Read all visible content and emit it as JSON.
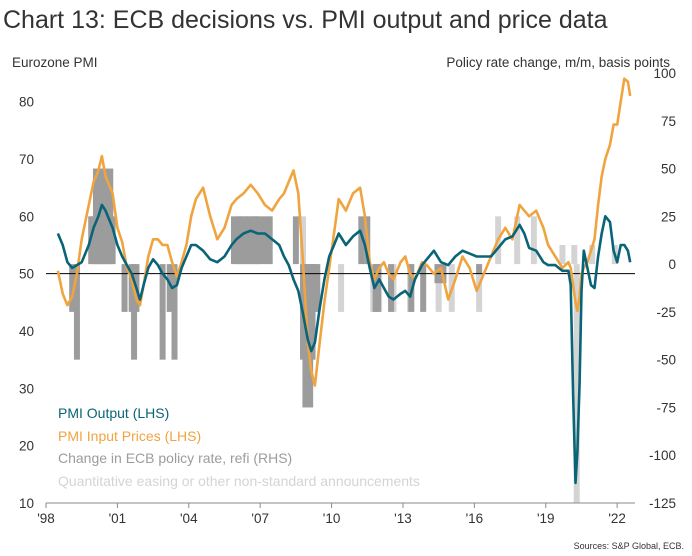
{
  "chart_data": {
    "type": "line",
    "title": "Chart 13: ECB decisions vs. PMI output and price data",
    "left_axis": {
      "label": "Eurozone PMI",
      "range": [
        10,
        85
      ],
      "ticks": [
        10,
        20,
        30,
        40,
        50,
        60,
        70,
        80
      ]
    },
    "right_axis": {
      "label": "Policy rate change, m/m, basis points",
      "range": [
        -125,
        100
      ],
      "ticks": [
        -125,
        -100,
        -75,
        -50,
        -25,
        0,
        25,
        50,
        75,
        100
      ]
    },
    "x_axis": {
      "range": [
        1998,
        2022.75
      ],
      "tick_labels": [
        "'98",
        "'01",
        "'04",
        "'07",
        "'10",
        "'13",
        "'16",
        "'19",
        "'22"
      ],
      "tick_values": [
        1998,
        2001,
        2004,
        2007,
        2010,
        2013,
        2016,
        2019,
        2022
      ]
    },
    "reference_line": {
      "axis": "left",
      "value": 50
    },
    "legend": {
      "placement": "bottom-left",
      "entries": [
        {
          "label": "PMI  Output (LHS)",
          "color": "#0a6478"
        },
        {
          "label": "PMI Input Prices (LHS)",
          "color": "#f0a440"
        },
        {
          "label": "Change in ECB policy rate, refi (RHS)",
          "color": "#9c9c9c"
        },
        {
          "label": "Quantitative easing or other non-standard announcements",
          "color": "#d4d4d4"
        }
      ]
    },
    "series": [
      {
        "name": "PMI  Output (LHS)",
        "axis": "left",
        "color": "#0a6478",
        "points": [
          [
            1998.5,
            57
          ],
          [
            1998.7,
            55
          ],
          [
            1998.9,
            52
          ],
          [
            1999.1,
            51
          ],
          [
            1999.3,
            51.5
          ],
          [
            1999.5,
            52
          ],
          [
            1999.8,
            55
          ],
          [
            2000.0,
            58
          ],
          [
            2000.2,
            60
          ],
          [
            2000.35,
            62
          ],
          [
            2000.5,
            61
          ],
          [
            2000.8,
            58
          ],
          [
            2001.0,
            55
          ],
          [
            2001.2,
            53
          ],
          [
            2001.4,
            51.5
          ],
          [
            2001.6,
            50
          ],
          [
            2001.8,
            47.5
          ],
          [
            2001.95,
            45.5
          ],
          [
            2002.1,
            48
          ],
          [
            2002.3,
            51
          ],
          [
            2002.5,
            52.5
          ],
          [
            2002.7,
            51.5
          ],
          [
            2002.9,
            50
          ],
          [
            2003.1,
            49
          ],
          [
            2003.3,
            47.5
          ],
          [
            2003.5,
            48
          ],
          [
            2003.7,
            51
          ],
          [
            2003.9,
            53
          ],
          [
            2004.1,
            55
          ],
          [
            2004.3,
            55
          ],
          [
            2004.6,
            54
          ],
          [
            2004.9,
            52.5
          ],
          [
            2005.2,
            52
          ],
          [
            2005.5,
            53
          ],
          [
            2005.8,
            55
          ],
          [
            2006.0,
            56
          ],
          [
            2006.3,
            57
          ],
          [
            2006.6,
            57.5
          ],
          [
            2006.9,
            57
          ],
          [
            2007.2,
            57
          ],
          [
            2007.5,
            56
          ],
          [
            2007.8,
            55
          ],
          [
            2008.0,
            53
          ],
          [
            2008.2,
            51.5
          ],
          [
            2008.4,
            49
          ],
          [
            2008.6,
            47
          ],
          [
            2008.8,
            43
          ],
          [
            2009.0,
            38.5
          ],
          [
            2009.15,
            36.5
          ],
          [
            2009.3,
            38
          ],
          [
            2009.5,
            44
          ],
          [
            2009.7,
            49
          ],
          [
            2009.9,
            53
          ],
          [
            2010.1,
            55
          ],
          [
            2010.3,
            57
          ],
          [
            2010.6,
            55
          ],
          [
            2010.9,
            56.5
          ],
          [
            2011.2,
            57.5
          ],
          [
            2011.4,
            55
          ],
          [
            2011.6,
            51
          ],
          [
            2011.8,
            47.5
          ],
          [
            2012.0,
            49
          ],
          [
            2012.2,
            47.5
          ],
          [
            2012.4,
            46
          ],
          [
            2012.6,
            45.5
          ],
          [
            2012.9,
            46.5
          ],
          [
            2013.1,
            47
          ],
          [
            2013.3,
            46
          ],
          [
            2013.5,
            49
          ],
          [
            2013.8,
            51.5
          ],
          [
            2014.0,
            52.5
          ],
          [
            2014.3,
            54
          ],
          [
            2014.6,
            52
          ],
          [
            2014.9,
            51.5
          ],
          [
            2015.2,
            53
          ],
          [
            2015.5,
            54
          ],
          [
            2015.8,
            53.5
          ],
          [
            2016.1,
            53
          ],
          [
            2016.4,
            53
          ],
          [
            2016.7,
            53
          ],
          [
            2017.0,
            54.5
          ],
          [
            2017.3,
            56
          ],
          [
            2017.6,
            56.5
          ],
          [
            2017.9,
            58.5
          ],
          [
            2018.1,
            57
          ],
          [
            2018.3,
            54.5
          ],
          [
            2018.6,
            54
          ],
          [
            2018.9,
            52
          ],
          [
            2019.1,
            51.5
          ],
          [
            2019.4,
            51.5
          ],
          [
            2019.7,
            50.5
          ],
          [
            2019.95,
            50.5
          ],
          [
            2020.05,
            48
          ],
          [
            2020.15,
            29
          ],
          [
            2020.25,
            13.5
          ],
          [
            2020.33,
            19
          ],
          [
            2020.42,
            31
          ],
          [
            2020.5,
            47
          ],
          [
            2020.6,
            54
          ],
          [
            2020.75,
            51
          ],
          [
            2020.9,
            48
          ],
          [
            2021.05,
            47.5
          ],
          [
            2021.2,
            53
          ],
          [
            2021.35,
            57
          ],
          [
            2021.5,
            60
          ],
          [
            2021.7,
            59
          ],
          [
            2021.85,
            54
          ],
          [
            2022.0,
            52
          ],
          [
            2022.15,
            55
          ],
          [
            2022.3,
            55
          ],
          [
            2022.45,
            54
          ],
          [
            2022.55,
            52
          ]
        ]
      },
      {
        "name": "PMI Input Prices (LHS)",
        "axis": "left",
        "color": "#f0a440",
        "points": [
          [
            1998.5,
            50.5
          ],
          [
            1998.7,
            46.5
          ],
          [
            1998.9,
            44.5
          ],
          [
            1999.1,
            46
          ],
          [
            1999.3,
            50
          ],
          [
            1999.5,
            56
          ],
          [
            1999.8,
            62
          ],
          [
            2000.0,
            66
          ],
          [
            2000.2,
            68
          ],
          [
            2000.35,
            70.5
          ],
          [
            2000.5,
            67
          ],
          [
            2000.8,
            64
          ],
          [
            2001.0,
            58
          ],
          [
            2001.2,
            55.5
          ],
          [
            2001.4,
            51
          ],
          [
            2001.6,
            49
          ],
          [
            2001.8,
            45.5
          ],
          [
            2001.95,
            44.5
          ],
          [
            2002.1,
            48
          ],
          [
            2002.3,
            53
          ],
          [
            2002.5,
            56
          ],
          [
            2002.7,
            56
          ],
          [
            2002.9,
            55
          ],
          [
            2003.1,
            55
          ],
          [
            2003.3,
            52
          ],
          [
            2003.5,
            49.5
          ],
          [
            2003.7,
            52
          ],
          [
            2003.9,
            55
          ],
          [
            2004.1,
            60
          ],
          [
            2004.3,
            63
          ],
          [
            2004.6,
            65
          ],
          [
            2004.9,
            60
          ],
          [
            2005.2,
            56
          ],
          [
            2005.5,
            58
          ],
          [
            2005.8,
            62
          ],
          [
            2006.0,
            63
          ],
          [
            2006.3,
            64
          ],
          [
            2006.6,
            65.5
          ],
          [
            2006.9,
            64
          ],
          [
            2007.2,
            62
          ],
          [
            2007.5,
            61
          ],
          [
            2007.8,
            63
          ],
          [
            2008.0,
            64
          ],
          [
            2008.2,
            66
          ],
          [
            2008.4,
            68
          ],
          [
            2008.6,
            64
          ],
          [
            2008.8,
            52
          ],
          [
            2009.0,
            38
          ],
          [
            2009.15,
            33
          ],
          [
            2009.3,
            30.5
          ],
          [
            2009.5,
            38
          ],
          [
            2009.7,
            45
          ],
          [
            2009.9,
            51
          ],
          [
            2010.1,
            57
          ],
          [
            2010.3,
            63
          ],
          [
            2010.6,
            61
          ],
          [
            2010.9,
            64
          ],
          [
            2011.2,
            65
          ],
          [
            2011.4,
            60
          ],
          [
            2011.6,
            52
          ],
          [
            2011.8,
            49
          ],
          [
            2012.0,
            51
          ],
          [
            2012.2,
            52
          ],
          [
            2012.4,
            50
          ],
          [
            2012.6,
            49
          ],
          [
            2012.9,
            52
          ],
          [
            2013.1,
            53
          ],
          [
            2013.3,
            50
          ],
          [
            2013.5,
            49
          ],
          [
            2013.8,
            52
          ],
          [
            2014.0,
            51.5
          ],
          [
            2014.3,
            50
          ],
          [
            2014.6,
            51
          ],
          [
            2014.9,
            45.5
          ],
          [
            2015.2,
            49
          ],
          [
            2015.5,
            53
          ],
          [
            2015.8,
            51
          ],
          [
            2016.1,
            47
          ],
          [
            2016.4,
            50
          ],
          [
            2016.7,
            53
          ],
          [
            2017.0,
            56
          ],
          [
            2017.3,
            58
          ],
          [
            2017.6,
            56
          ],
          [
            2017.9,
            62
          ],
          [
            2018.1,
            61
          ],
          [
            2018.3,
            60
          ],
          [
            2018.6,
            61
          ],
          [
            2018.9,
            58
          ],
          [
            2019.1,
            55
          ],
          [
            2019.4,
            53
          ],
          [
            2019.7,
            51
          ],
          [
            2019.95,
            52
          ],
          [
            2020.05,
            51
          ],
          [
            2020.15,
            48
          ],
          [
            2020.25,
            45
          ],
          [
            2020.33,
            43.5
          ],
          [
            2020.42,
            46
          ],
          [
            2020.5,
            50
          ],
          [
            2020.6,
            51
          ],
          [
            2020.75,
            52
          ],
          [
            2020.9,
            54
          ],
          [
            2021.05,
            56
          ],
          [
            2021.2,
            62
          ],
          [
            2021.35,
            67
          ],
          [
            2021.5,
            70
          ],
          [
            2021.7,
            72.5
          ],
          [
            2021.85,
            76
          ],
          [
            2022.0,
            76
          ],
          [
            2022.15,
            80
          ],
          [
            2022.3,
            84
          ],
          [
            2022.45,
            83.5
          ],
          [
            2022.55,
            81
          ]
        ]
      }
    ],
    "bars": {
      "policy_rate_change": {
        "axis": "right",
        "color": "#9c9c9c",
        "points": [
          [
            1999.1,
            -25
          ],
          [
            1999.3,
            -50
          ],
          [
            1999.9,
            25
          ],
          [
            2000.0,
            25
          ],
          [
            2000.1,
            50
          ],
          [
            2000.2,
            25
          ],
          [
            2000.3,
            50
          ],
          [
            2000.4,
            25
          ],
          [
            2000.5,
            50
          ],
          [
            2000.6,
            25
          ],
          [
            2000.7,
            50
          ],
          [
            2000.8,
            25
          ],
          [
            2001.3,
            -25
          ],
          [
            2001.6,
            -25
          ],
          [
            2001.7,
            -50
          ],
          [
            2001.8,
            -25
          ],
          [
            2002.9,
            -50
          ],
          [
            2003.2,
            -25
          ],
          [
            2003.4,
            -50
          ],
          [
            2005.9,
            25
          ],
          [
            2006.1,
            25
          ],
          [
            2006.2,
            25
          ],
          [
            2006.4,
            25
          ],
          [
            2006.5,
            25
          ],
          [
            2006.7,
            25
          ],
          [
            2006.8,
            25
          ],
          [
            2006.95,
            25
          ],
          [
            2007.2,
            25
          ],
          [
            2007.4,
            25
          ],
          [
            2008.5,
            25
          ],
          [
            2008.8,
            -50
          ],
          [
            2008.9,
            -75
          ],
          [
            2009.0,
            -50
          ],
          [
            2009.1,
            -75
          ],
          [
            2009.2,
            -50
          ],
          [
            2009.3,
            -25
          ],
          [
            2009.4,
            -25
          ],
          [
            2011.25,
            25
          ],
          [
            2011.5,
            25
          ],
          [
            2011.85,
            -25
          ],
          [
            2011.95,
            -25
          ],
          [
            2012.5,
            -25
          ],
          [
            2013.35,
            -25
          ],
          [
            2013.85,
            -25
          ],
          [
            2014.45,
            -10
          ],
          [
            2014.7,
            -10
          ],
          [
            2016.2,
            -5
          ]
        ]
      },
      "qe_announcements": {
        "axis": "right",
        "color": "#d4d4d4",
        "points": [
          [
            2008.8,
            25
          ],
          [
            2010.4,
            -25
          ],
          [
            2011.75,
            -25
          ],
          [
            2012.0,
            -25
          ],
          [
            2012.6,
            -25
          ],
          [
            2013.3,
            -25
          ],
          [
            2014.5,
            -25
          ],
          [
            2015.05,
            -25
          ],
          [
            2016.2,
            -25
          ],
          [
            2017.0,
            25
          ],
          [
            2017.8,
            25
          ],
          [
            2018.5,
            25
          ],
          [
            2019.7,
            10
          ],
          [
            2020.2,
            10
          ],
          [
            2020.3,
            -125
          ],
          [
            2020.95,
            10
          ],
          [
            2021.9,
            10
          ]
        ]
      }
    }
  },
  "source": "Sources: S&P Global, ECB."
}
